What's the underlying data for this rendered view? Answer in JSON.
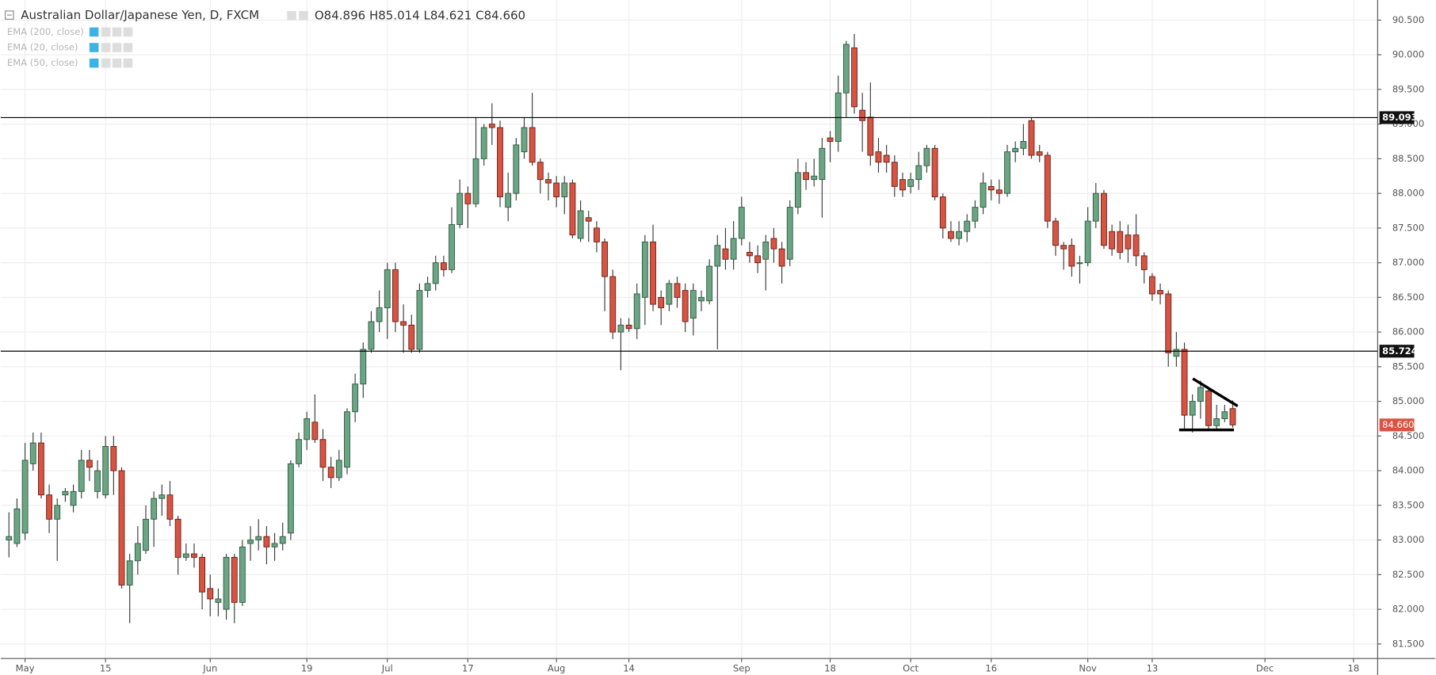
{
  "header": {
    "title": "Australian Dollar/Japanese Yen, D, FXCM",
    "ohlc": [
      "O84.896",
      "H85.014",
      "L84.621",
      "C84.660"
    ],
    "indicators": [
      "EMA (200, close)",
      "EMA (20, close)",
      "EMA (50, close)"
    ]
  },
  "chart_data": {
    "type": "candlestick",
    "categories": [
      null,
      null,
      "May",
      null,
      null,
      null,
      null,
      null,
      null,
      null,
      null,
      null,
      "15",
      null,
      null,
      null,
      null,
      null,
      null,
      null,
      null,
      null,
      null,
      null,
      null,
      "Jun",
      null,
      null,
      null,
      null,
      null,
      null,
      null,
      null,
      null,
      null,
      null,
      "19",
      null,
      null,
      null,
      null,
      null,
      null,
      null,
      null,
      null,
      "Jul",
      null,
      null,
      null,
      null,
      null,
      null,
      null,
      null,
      null,
      "17",
      null,
      null,
      null,
      null,
      null,
      null,
      null,
      null,
      null,
      null,
      "Aug",
      null,
      null,
      null,
      null,
      null,
      null,
      null,
      null,
      "14",
      null,
      null,
      null,
      null,
      null,
      null,
      null,
      null,
      null,
      null,
      null,
      null,
      null,
      "Sep",
      null,
      null,
      null,
      null,
      null,
      null,
      null,
      null,
      null,
      null,
      "18",
      null,
      null,
      null,
      null,
      null,
      null,
      null,
      null,
      null,
      "Oct",
      null,
      null,
      null,
      null,
      null,
      null,
      null,
      null,
      null,
      "16",
      null,
      null,
      null,
      null,
      null,
      null,
      null,
      null,
      null,
      null,
      null,
      "Nov",
      null,
      null,
      null,
      null,
      null,
      null,
      null,
      "13",
      null,
      null,
      null,
      null,
      null,
      null,
      null,
      null,
      null,
      null,
      null,
      null,
      null,
      "Dec",
      null,
      null,
      null,
      null,
      null,
      null,
      null,
      null,
      null,
      null,
      "18"
    ],
    "open": [
      83.0,
      82.95,
      83.1,
      84.1,
      84.4,
      83.65,
      83.3,
      83.65,
      83.5,
      83.7,
      84.15,
      83.7,
      83.65,
      84.35,
      84.0,
      82.35,
      82.7,
      82.85,
      83.3,
      83.6,
      83.65,
      83.3,
      82.75,
      82.8,
      82.75,
      82.3,
      82.1,
      82.0,
      82.75,
      82.1,
      82.95,
      83.0,
      83.05,
      82.9,
      82.95,
      83.1,
      84.1,
      84.45,
      84.7,
      84.45,
      84.05,
      83.9,
      84.05,
      84.85,
      85.25,
      85.75,
      86.15,
      86.35,
      86.9,
      86.15,
      86.1,
      85.75,
      86.6,
      86.7,
      87.0,
      86.9,
      87.55,
      88.0,
      87.85,
      88.5,
      89.0,
      88.95,
      87.8,
      88.0,
      88.6,
      88.95,
      88.45,
      88.2,
      88.15,
      87.95,
      88.15,
      87.35,
      87.65,
      87.5,
      87.3,
      86.8,
      86.0,
      86.1,
      86.05,
      86.5,
      87.3,
      86.5,
      86.4,
      86.7,
      86.6,
      86.2,
      86.45,
      86.45,
      86.95,
      87.2,
      87.05,
      87.35,
      87.15,
      87.1,
      87.05,
      87.35,
      87.2,
      87.05,
      87.8,
      88.3,
      88.2,
      88.2,
      88.8,
      88.75,
      89.45,
      90.1,
      89.2,
      89.1,
      88.6,
      88.55,
      88.45,
      88.2,
      88.1,
      88.2,
      88.4,
      88.65,
      87.95,
      87.45,
      87.35,
      87.45,
      87.6,
      87.8,
      88.1,
      88.05,
      88.0,
      88.6,
      88.65,
      89.05,
      88.6,
      88.55,
      87.6,
      87.25,
      87.25,
      87.0,
      87.0,
      87.6,
      88.0,
      87.45,
      87.45,
      87.4,
      87.4,
      87.1,
      86.8,
      86.6,
      86.55,
      85.65,
      85.75,
      84.8,
      85.0,
      85.15,
      84.65,
      84.75,
      84.896,
      null,
      null,
      null,
      null,
      null,
      null,
      null,
      null,
      null,
      null,
      null,
      null,
      null,
      null,
      null
    ],
    "high": [
      83.4,
      83.6,
      84.4,
      84.55,
      84.55,
      83.8,
      83.6,
      83.75,
      83.8,
      84.3,
      84.3,
      84.15,
      84.5,
      84.5,
      84.05,
      82.8,
      83.2,
      83.5,
      83.7,
      83.8,
      83.85,
      83.35,
      82.95,
      82.95,
      82.8,
      82.5,
      82.3,
      82.8,
      82.8,
      83.0,
      83.2,
      83.3,
      83.2,
      83.1,
      83.25,
      84.15,
      84.55,
      84.85,
      85.1,
      84.6,
      84.2,
      84.3,
      84.9,
      85.4,
      85.85,
      86.3,
      86.6,
      87.0,
      87.0,
      86.4,
      86.25,
      86.7,
      86.8,
      87.1,
      87.1,
      87.8,
      88.2,
      88.1,
      89.1,
      89.0,
      89.3,
      89.05,
      88.3,
      88.8,
      89.1,
      89.45,
      88.5,
      88.3,
      88.25,
      88.25,
      88.2,
      87.9,
      87.75,
      87.6,
      87.35,
      86.9,
      86.2,
      86.2,
      86.7,
      87.4,
      87.55,
      86.6,
      86.75,
      86.8,
      86.7,
      86.7,
      86.6,
      87.05,
      87.4,
      87.5,
      87.6,
      87.95,
      87.3,
      87.25,
      87.4,
      87.5,
      87.3,
      87.9,
      88.5,
      88.45,
      88.5,
      88.8,
      88.9,
      89.7,
      90.2,
      90.3,
      89.45,
      89.6,
      88.8,
      88.7,
      88.55,
      88.3,
      88.3,
      88.6,
      88.7,
      88.7,
      88.0,
      87.6,
      87.6,
      87.7,
      87.9,
      88.3,
      88.2,
      88.2,
      88.7,
      88.75,
      89.0,
      89.1,
      88.7,
      88.6,
      87.65,
      87.3,
      87.35,
      87.1,
      87.8,
      88.15,
      88.05,
      87.55,
      87.6,
      87.55,
      87.7,
      87.15,
      86.85,
      86.7,
      86.6,
      86.0,
      85.85,
      85.1,
      85.3,
      85.2,
      84.95,
      84.95,
      85.014,
      null,
      null,
      null,
      null,
      null,
      null,
      null,
      null,
      null,
      null,
      null,
      null,
      null,
      null,
      null
    ],
    "low": [
      82.75,
      82.9,
      83.0,
      84.0,
      83.6,
      83.1,
      82.7,
      83.55,
      83.4,
      83.6,
      83.85,
      83.6,
      83.6,
      83.65,
      82.3,
      81.8,
      82.5,
      82.8,
      82.9,
      83.35,
      83.2,
      82.5,
      82.7,
      82.6,
      82.0,
      81.9,
      81.9,
      81.85,
      81.8,
      82.05,
      82.7,
      82.85,
      82.65,
      82.7,
      82.85,
      83.0,
      84.05,
      84.3,
      84.4,
      83.85,
      83.75,
      83.85,
      83.95,
      84.7,
      85.05,
      85.7,
      86.0,
      85.9,
      86.0,
      85.7,
      85.7,
      85.7,
      86.5,
      86.6,
      86.8,
      86.85,
      87.5,
      87.5,
      87.8,
      88.4,
      88.7,
      87.8,
      87.6,
      87.9,
      88.5,
      88.4,
      88.0,
      87.9,
      87.8,
      87.7,
      87.35,
      87.3,
      87.3,
      87.15,
      86.3,
      85.9,
      85.45,
      86.0,
      85.9,
      86.1,
      86.3,
      86.1,
      86.3,
      86.35,
      86.0,
      85.95,
      86.3,
      86.4,
      85.75,
      86.9,
      86.9,
      87.25,
      87.0,
      86.85,
      86.6,
      87.0,
      86.7,
      86.95,
      87.7,
      88.05,
      88.1,
      87.65,
      88.45,
      88.6,
      89.1,
      89.15,
      88.6,
      88.4,
      88.3,
      88.3,
      87.95,
      87.95,
      88.0,
      88.05,
      88.3,
      87.9,
      87.35,
      87.3,
      87.25,
      87.3,
      87.5,
      87.7,
      87.9,
      87.85,
      87.95,
      88.45,
      88.55,
      88.5,
      88.45,
      87.5,
      87.1,
      86.9,
      86.8,
      86.7,
      86.95,
      87.5,
      87.2,
      87.1,
      87.05,
      87.0,
      86.95,
      86.7,
      86.45,
      86.4,
      85.5,
      85.5,
      84.6,
      84.55,
      84.75,
      84.6,
      84.6,
      84.7,
      84.621,
      null,
      null,
      null,
      null,
      null,
      null,
      null,
      null,
      null,
      null,
      null,
      null,
      null,
      null,
      null
    ],
    "close": [
      83.05,
      83.45,
      84.15,
      84.4,
      83.65,
      83.3,
      83.5,
      83.7,
      83.7,
      84.15,
      84.05,
      84.0,
      84.35,
      84.0,
      82.35,
      82.7,
      82.95,
      83.3,
      83.6,
      83.65,
      83.3,
      82.75,
      82.8,
      82.75,
      82.25,
      82.15,
      82.15,
      82.75,
      82.1,
      82.9,
      83.0,
      83.05,
      82.9,
      82.95,
      83.05,
      84.1,
      84.45,
      84.75,
      84.45,
      84.05,
      83.9,
      84.15,
      84.85,
      85.25,
      85.75,
      86.15,
      86.35,
      86.9,
      86.15,
      86.1,
      85.75,
      86.6,
      86.7,
      87.0,
      86.9,
      87.55,
      88.0,
      87.85,
      88.5,
      88.95,
      88.95,
      87.95,
      88.0,
      88.7,
      88.95,
      88.45,
      88.2,
      88.15,
      87.95,
      88.15,
      87.4,
      87.75,
      87.6,
      87.3,
      86.8,
      86.0,
      86.1,
      86.05,
      86.55,
      87.3,
      86.4,
      86.35,
      86.7,
      86.5,
      86.15,
      86.6,
      86.5,
      86.95,
      87.25,
      87.05,
      87.35,
      87.8,
      87.1,
      87.0,
      87.3,
      87.2,
      86.95,
      87.8,
      88.3,
      88.2,
      88.25,
      88.65,
      88.75,
      89.45,
      90.15,
      89.25,
      89.05,
      88.55,
      88.45,
      88.45,
      88.1,
      88.05,
      88.2,
      88.4,
      88.65,
      87.95,
      87.5,
      87.35,
      87.45,
      87.6,
      87.8,
      88.15,
      88.05,
      88.0,
      88.6,
      88.65,
      88.75,
      88.55,
      88.55,
      87.6,
      87.25,
      87.2,
      86.95,
      87.0,
      87.6,
      88.0,
      87.25,
      87.2,
      87.15,
      87.2,
      87.1,
      86.9,
      86.55,
      86.55,
      85.7,
      85.75,
      84.8,
      85.0,
      85.2,
      84.65,
      84.75,
      84.85,
      84.66,
      null,
      null,
      null,
      null,
      null,
      null,
      null,
      null,
      null,
      null,
      null,
      null,
      null,
      null,
      null
    ],
    "up_color": "#6ba583",
    "down_color": "#d75442",
    "ylim": [
      81.29,
      90.79
    ],
    "yticks": [
      {
        "value": 81.5,
        "label": "81.500"
      },
      {
        "value": 82,
        "label": "82.000"
      },
      {
        "value": 82.5,
        "label": "82.500"
      },
      {
        "value": 83,
        "label": "83.000"
      },
      {
        "value": 83.5,
        "label": "83.500"
      },
      {
        "value": 84,
        "label": "84.000"
      },
      {
        "value": 84.5,
        "label": "84.500"
      },
      {
        "value": 85,
        "label": "85.000"
      },
      {
        "value": 85.5,
        "label": "85.500"
      },
      {
        "value": 86,
        "label": "86.000"
      },
      {
        "value": 86.5,
        "label": "86.500"
      },
      {
        "value": 87,
        "label": "87.000"
      },
      {
        "value": 87.5,
        "label": "87.500"
      },
      {
        "value": 88,
        "label": "88.000"
      },
      {
        "value": 88.5,
        "label": "88.500"
      },
      {
        "value": 89,
        "label": "89.000"
      },
      {
        "value": 89.5,
        "label": "89.500"
      },
      {
        "value": 90,
        "label": "90.000"
      },
      {
        "value": 90.5,
        "label": "90.500"
      }
    ],
    "hlines": [
      {
        "value": 89.093,
        "label": "89.093"
      },
      {
        "value": 85.724,
        "label": "85.724"
      }
    ],
    "last": {
      "value": 84.66,
      "label": "84.660"
    },
    "grid": true
  }
}
